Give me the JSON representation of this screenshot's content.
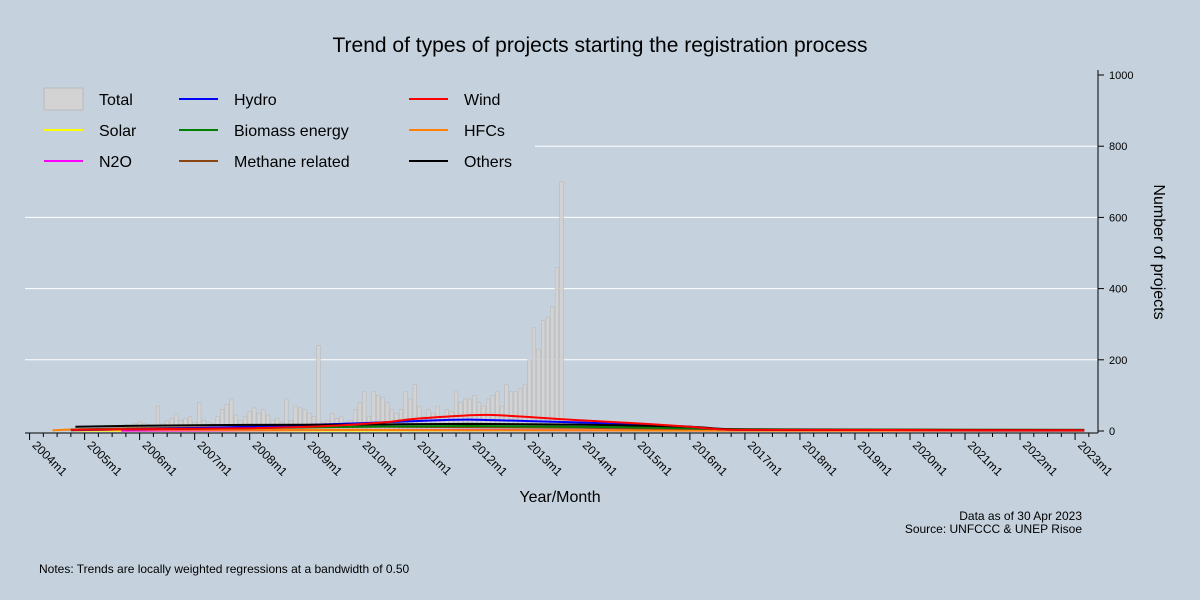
{
  "chart_data": {
    "type": "bar",
    "title": "Trend of types of projects starting the registration process",
    "xlabel": "Year/Month",
    "ylabel": "Number of projects",
    "ylim": [
      0,
      1000
    ],
    "xlim": [
      "2003m12",
      "2023m6"
    ],
    "y_axis_side": "right",
    "y_ticks": [
      0,
      200,
      400,
      600,
      800,
      1000
    ],
    "x_ticks": [
      "2004m1",
      "2005m1",
      "2006m1",
      "2007m1",
      "2008m1",
      "2009m1",
      "2010m1",
      "2011m1",
      "2012m1",
      "2013m1",
      "2014m1",
      "2015m1",
      "2016m1",
      "2017m1",
      "2018m1",
      "2019m1",
      "2020m1",
      "2021m1",
      "2022m1",
      "2023m1"
    ],
    "grid": true,
    "legend_placement": "top-left",
    "bar_series": {
      "name": "Total",
      "color": "#d3d3d3",
      "start": "2004m11",
      "values": [
        2,
        3,
        4,
        5,
        8,
        10,
        6,
        12,
        15,
        10,
        12,
        18,
        14,
        20,
        25,
        22,
        18,
        12,
        70,
        20,
        28,
        35,
        48,
        30,
        35,
        40,
        25,
        80,
        30,
        25,
        20,
        40,
        60,
        75,
        90,
        45,
        30,
        40,
        55,
        65,
        50,
        60,
        45,
        30,
        35,
        25,
        90,
        30,
        70,
        65,
        60,
        50,
        40,
        240,
        25,
        30,
        50,
        35,
        40,
        25,
        30,
        60,
        80,
        110,
        40,
        110,
        100,
        95,
        80,
        60,
        50,
        60,
        110,
        90,
        130,
        70,
        40,
        60,
        50,
        70,
        40,
        60,
        55,
        110,
        80,
        90,
        90,
        100,
        80,
        70,
        90,
        100,
        110,
        70,
        130,
        110,
        110,
        120,
        130,
        200,
        290,
        230,
        310,
        320,
        350,
        460,
        700
      ]
    },
    "series": [
      {
        "name": "Hydro",
        "color": "#0000ff",
        "x": [
          "2004m10",
          "2006m1",
          "2008m1",
          "2010m1",
          "2011m6",
          "2012m1",
          "2013m1",
          "2014m1",
          "2015m1",
          "2016m1",
          "2016m9",
          "2018m1",
          "2023m3"
        ],
        "values": [
          2,
          5,
          12,
          22,
          30,
          32,
          28,
          24,
          18,
          12,
          4,
          3,
          2
        ]
      },
      {
        "name": "Wind",
        "color": "#ff0000",
        "x": [
          "2004m10",
          "2006m1",
          "2008m1",
          "2009m6",
          "2010m6",
          "2011m1",
          "2012m1",
          "2012m6",
          "2013m1",
          "2014m1",
          "2015m1",
          "2016m1",
          "2016m9",
          "2018m1",
          "2023m3"
        ],
        "values": [
          3,
          5,
          8,
          14,
          24,
          34,
          44,
          45,
          40,
          30,
          22,
          12,
          4,
          3,
          2
        ]
      },
      {
        "name": "Solar",
        "color": "#ffff00",
        "x": [
          "2004m10",
          "2010m1",
          "2012m1",
          "2014m1",
          "2016m1",
          "2018m1",
          "2023m3"
        ],
        "values": [
          1,
          1,
          2,
          2,
          2,
          1,
          1
        ]
      },
      {
        "name": "Biomass energy",
        "color": "#008000",
        "x": [
          "2004m10",
          "2006m1",
          "2008m1",
          "2010m1",
          "2012m1",
          "2014m1",
          "2016m1",
          "2017m1",
          "2020m1",
          "2023m3"
        ],
        "values": [
          3,
          5,
          8,
          12,
          14,
          12,
          8,
          5,
          4,
          3
        ]
      },
      {
        "name": "HFCs",
        "color": "#ff8000",
        "x": [
          "2004m6",
          "2005m1",
          "2006m1",
          "2008m1",
          "2010m1",
          "2012m1",
          "2014m1",
          "2016m1",
          "2018m1",
          "2023m3"
        ],
        "values": [
          2,
          5,
          4,
          3,
          3,
          2,
          2,
          1,
          1,
          1
        ]
      },
      {
        "name": "N2O",
        "color": "#ff00ff",
        "x": [
          "2005m9",
          "2008m1",
          "2010m1",
          "2012m1",
          "2014m1",
          "2016m1",
          "2018m1",
          "2023m3"
        ],
        "values": [
          1,
          2,
          3,
          3,
          2,
          2,
          1,
          1
        ]
      },
      {
        "name": "Methane related",
        "color": "#8b4513",
        "x": [
          "2004m10",
          "2006m1",
          "2008m1",
          "2010m1",
          "2012m1",
          "2014m1",
          "2016m1",
          "2018m1",
          "2023m3"
        ],
        "values": [
          4,
          8,
          10,
          12,
          11,
          9,
          6,
          4,
          3
        ]
      },
      {
        "name": "Others",
        "color": "#000000",
        "x": [
          "2004m11",
          "2006m1",
          "2008m1",
          "2010m1",
          "2012m1",
          "2014m1",
          "2016m1",
          "2016m9",
          "2018m1",
          "2020m1",
          "2023m3"
        ],
        "values": [
          12,
          15,
          17,
          18,
          20,
          18,
          12,
          5,
          3,
          3,
          2
        ]
      }
    ],
    "annotations": [
      "Data as of 30 Apr 2023",
      "Source: UNFCCC & UNEP Risoe"
    ],
    "notes": "Notes: Trends are locally weighted regressions at a bandwidth of 0.50"
  }
}
